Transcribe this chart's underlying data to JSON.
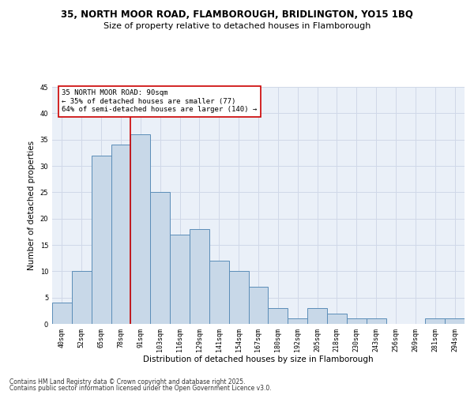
{
  "title1": "35, NORTH MOOR ROAD, FLAMBOROUGH, BRIDLINGTON, YO15 1BQ",
  "title2": "Size of property relative to detached houses in Flamborough",
  "xlabel": "Distribution of detached houses by size in Flamborough",
  "ylabel": "Number of detached properties",
  "categories": [
    "40sqm",
    "52sqm",
    "65sqm",
    "78sqm",
    "91sqm",
    "103sqm",
    "116sqm",
    "129sqm",
    "141sqm",
    "154sqm",
    "167sqm",
    "180sqm",
    "192sqm",
    "205sqm",
    "218sqm",
    "230sqm",
    "243sqm",
    "256sqm",
    "269sqm",
    "281sqm",
    "294sqm"
  ],
  "values": [
    4,
    10,
    32,
    34,
    36,
    25,
    17,
    18,
    12,
    10,
    7,
    3,
    1,
    3,
    2,
    1,
    1,
    0,
    0,
    1,
    1
  ],
  "bar_color": "#c8d8e8",
  "bar_edge_color": "#5b8db8",
  "vline_index": 4,
  "vline_color": "#cc0000",
  "annotation_line1": "35 NORTH MOOR ROAD: 90sqm",
  "annotation_line2": "← 35% of detached houses are smaller (77)",
  "annotation_line3": "64% of semi-detached houses are larger (140) →",
  "annotation_box_color": "#ffffff",
  "annotation_box_edge": "#cc0000",
  "ylim": [
    0,
    45
  ],
  "yticks": [
    0,
    5,
    10,
    15,
    20,
    25,
    30,
    35,
    40,
    45
  ],
  "grid_color": "#d0d8e8",
  "bg_color": "#eaf0f8",
  "footer1": "Contains HM Land Registry data © Crown copyright and database right 2025.",
  "footer2": "Contains public sector information licensed under the Open Government Licence v3.0.",
  "title_fontsize": 8.5,
  "subtitle_fontsize": 8.0,
  "axis_label_fontsize": 7.5,
  "tick_fontsize": 6.0,
  "annotation_fontsize": 6.5,
  "footer_fontsize": 5.5
}
